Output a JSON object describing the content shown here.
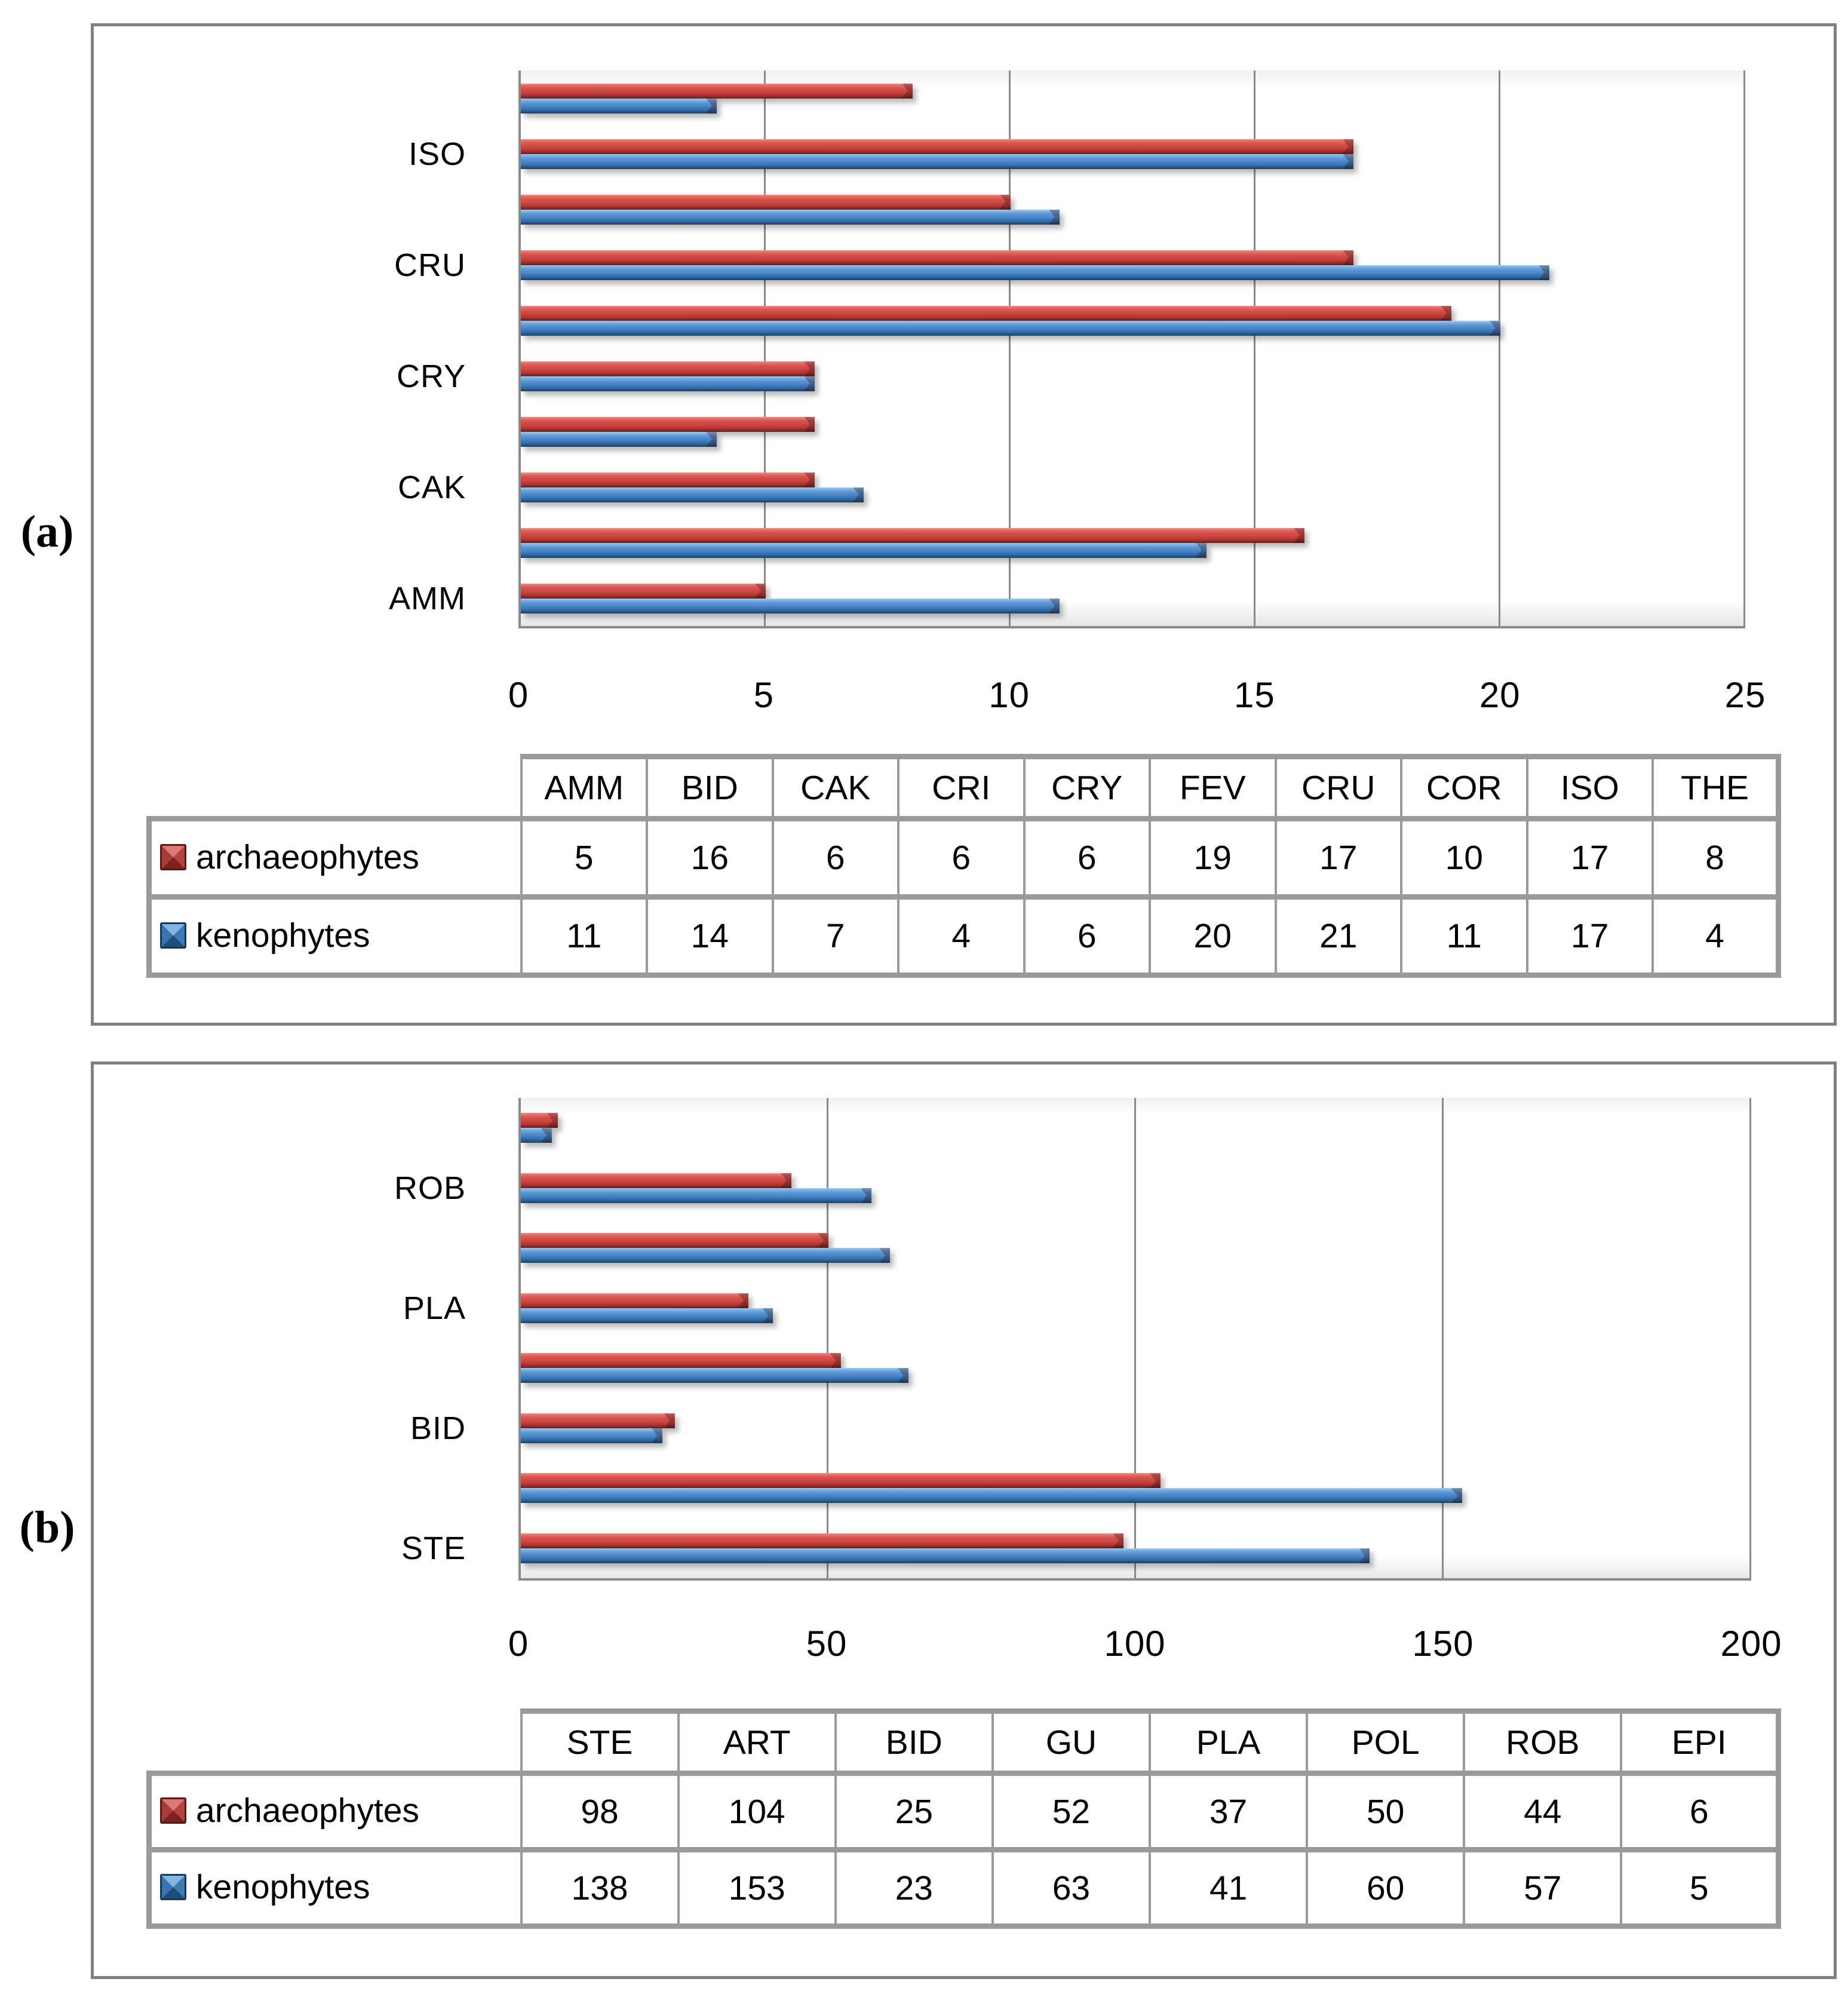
{
  "colors": {
    "background": "#ffffff",
    "panel_border": "#808080",
    "gridline": "#8a8a8a",
    "table_border": "#9a9a9a",
    "text": "#000000",
    "archaeophytes": "#C0504D",
    "kenophytes": "#4F81BD"
  },
  "panels": [
    {
      "letter": "(a)"
    },
    {
      "letter": "(b)"
    }
  ],
  "chart_data": [
    {
      "type": "bar",
      "orientation": "horizontal",
      "panel": "(a)",
      "categories": [
        "AMM",
        "BID",
        "CAK",
        "CRI",
        "CRY",
        "FEV",
        "CRU",
        "COR",
        "ISO",
        "THE"
      ],
      "categories_order": "bottom-to-top on axis, left-to-right in table",
      "axis_labeled_categories": [
        "AMM",
        "CAK",
        "CRY",
        "CRU",
        "ISO"
      ],
      "series": [
        {
          "name": "archaeophytes",
          "color": "#C0504D",
          "values": [
            5,
            16,
            6,
            6,
            6,
            19,
            17,
            10,
            17,
            8
          ]
        },
        {
          "name": "kenophytes",
          "color": "#4F81BD",
          "values": [
            11,
            14,
            7,
            4,
            6,
            20,
            21,
            11,
            17,
            4
          ]
        }
      ],
      "xlim": [
        0,
        25
      ],
      "xticks": [
        0,
        5,
        10,
        15,
        20,
        25
      ],
      "grid": true,
      "legend_position": "data table rows below chart"
    },
    {
      "type": "bar",
      "orientation": "horizontal",
      "panel": "(b)",
      "categories": [
        "STE",
        "ART",
        "BID",
        "GU",
        "PLA",
        "POL",
        "ROB",
        "EPI"
      ],
      "categories_order": "bottom-to-top on axis, left-to-right in table",
      "axis_labeled_categories": [
        "STE",
        "BID",
        "PLA",
        "ROB"
      ],
      "series": [
        {
          "name": "archaeophytes",
          "color": "#C0504D",
          "values": [
            98,
            104,
            25,
            52,
            37,
            50,
            44,
            6
          ]
        },
        {
          "name": "kenophytes",
          "color": "#4F81BD",
          "values": [
            138,
            153,
            23,
            63,
            41,
            60,
            57,
            5
          ]
        }
      ],
      "xlim": [
        0,
        200
      ],
      "xticks": [
        0,
        50,
        100,
        150,
        200
      ],
      "grid": true,
      "legend_position": "data table rows below chart"
    }
  ]
}
